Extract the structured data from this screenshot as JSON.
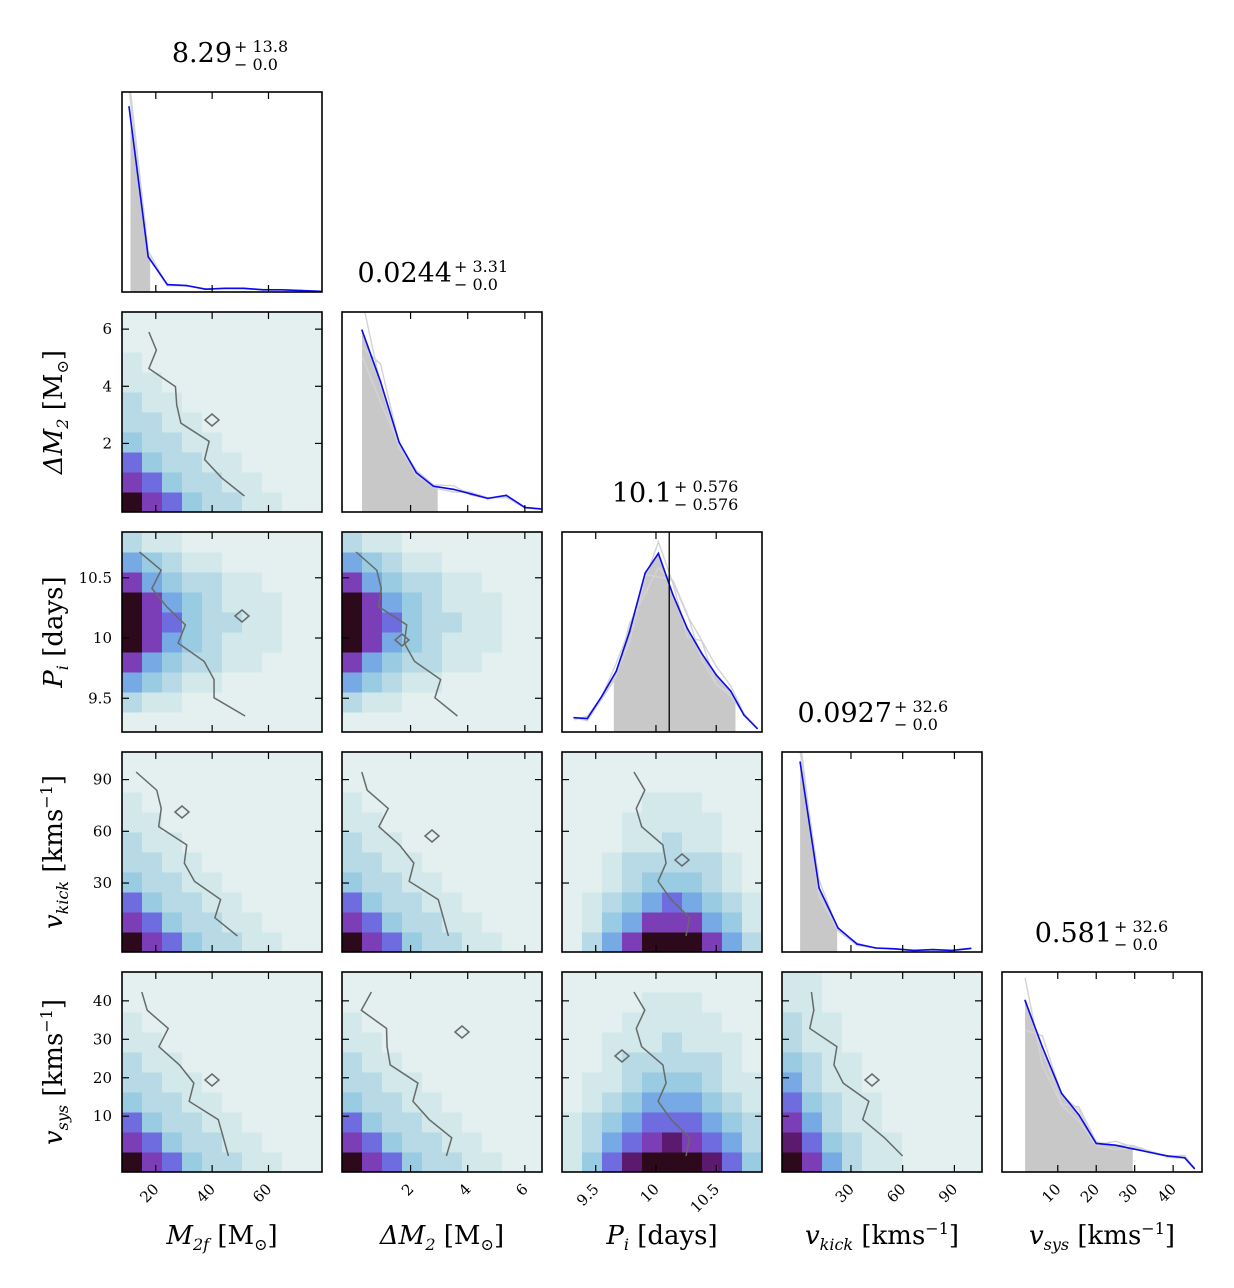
{
  "chart_data": {
    "type": "corner",
    "title": "",
    "parameters": [
      {
        "id": "m2f",
        "label": {
          "base": "M",
          "sub": "2f",
          "unit": "[M",
          "unit_sub": "⊙",
          "unit_end": "]"
        },
        "range": [
          8,
          79
        ],
        "ticks": [
          20,
          40,
          60
        ],
        "summary": {
          "value": "8.29",
          "plus": "+ 13.8",
          "minus": "− 0.0"
        },
        "hist": {
          "x": [
            10.5,
            17.3,
            24.1,
            30.9,
            37.7,
            44.5,
            51.3,
            58.1,
            64.9,
            71.7,
            78.5
          ],
          "y": [
            1.0,
            0.19,
            0.04,
            0.035,
            0.015,
            0.02,
            0.02,
            0.012,
            0.012,
            0.008,
            0.004
          ],
          "ymax": 1.08,
          "shade": [
            11,
            18
          ]
        }
      },
      {
        "id": "dm2",
        "label": {
          "base": "ΔM",
          "sub": "2",
          "unit": "[M",
          "unit_sub": "⊙",
          "unit_end": "]"
        },
        "range": [
          -0.4,
          6.6
        ],
        "ticks": [
          2,
          4,
          6
        ],
        "summary": {
          "value": "0.0244",
          "plus": "+ 3.31",
          "minus": "− 0.0"
        },
        "hist": {
          "x": [
            0.3,
            0.95,
            1.6,
            2.2,
            2.8,
            3.5,
            4.1,
            4.7,
            5.35,
            6.0,
            6.55
          ],
          "y": [
            0.6,
            0.43,
            0.23,
            0.13,
            0.085,
            0.075,
            0.06,
            0.045,
            0.055,
            0.015,
            0.01
          ],
          "ymax": 0.66,
          "shade": [
            0.3,
            2.95
          ]
        }
      },
      {
        "id": "pi",
        "label": {
          "base": "P",
          "sub": "i",
          "unit": "[days]",
          "unit_sub": "",
          "unit_end": ""
        },
        "range": [
          9.22,
          10.88
        ],
        "ticks": [
          9.5,
          10.0,
          10.5
        ],
        "summary": {
          "value": "10.1",
          "plus": "+ 0.576",
          "minus": "− 0.576"
        },
        "hist": {
          "x": [
            9.32,
            9.43,
            9.55,
            9.67,
            9.78,
            9.91,
            10.02,
            10.14,
            10.26,
            10.38,
            10.5,
            10.62,
            10.73,
            10.84
          ],
          "y": [
            0.08,
            0.075,
            0.2,
            0.34,
            0.56,
            0.89,
            1.0,
            0.77,
            0.58,
            0.44,
            0.32,
            0.23,
            0.095,
            0.02
          ],
          "ymax": 1.12,
          "shade": [
            9.65,
            10.66
          ],
          "median_line": 10.11
        }
      },
      {
        "id": "vkick",
        "label": {
          "base": "v",
          "sub": "kick",
          "unit": "[kms",
          "unit_sup": "−1",
          "unit_end": "]"
        },
        "range": [
          -10,
          106
        ],
        "ticks": [
          30,
          60,
          90
        ],
        "summary": {
          "value": "0.0927",
          "plus": "+ 32.6",
          "minus": "− 0.0"
        },
        "hist": {
          "x": [
            0.5,
            11.5,
            22.5,
            33.5,
            44.5,
            55.5,
            66.5,
            77.5,
            88.5,
            99.5
          ],
          "y": [
            0.95,
            0.32,
            0.12,
            0.04,
            0.02,
            0.016,
            0.008,
            0.012,
            0.008,
            0.018
          ],
          "ymax": 1.0,
          "shade": [
            0.5,
            22
          ]
        }
      },
      {
        "id": "vsys",
        "label": {
          "base": "v",
          "sub": "sys",
          "unit": "[kms",
          "unit_sup": "−1",
          "unit_end": "]"
        },
        "range": [
          -4.5,
          47.5
        ],
        "ticks": [
          10,
          20,
          30,
          40
        ],
        "summary": {
          "value": "0.581",
          "plus": "+ 32.6",
          "minus": "− 0.0"
        },
        "hist": {
          "x": [
            1.5,
            6.0,
            11.0,
            15.5,
            20.0,
            25.0,
            29.5,
            34.0,
            38.5,
            43.0,
            45.5
          ],
          "y": [
            0.48,
            0.35,
            0.22,
            0.16,
            0.08,
            0.075,
            0.065,
            0.055,
            0.045,
            0.04,
            0.01
          ],
          "ymax": 0.56,
          "shade": [
            1.5,
            29.5
          ]
        }
      }
    ],
    "density_colors": [
      "#e4f0f0",
      "#d2e8ea",
      "#b8dae6",
      "#99cbe2",
      "#77a9e4",
      "#6f6ce0",
      "#7c3eb6",
      "#5b1a6e",
      "#2c0a1c"
    ],
    "hist_color": "#0a0aee",
    "shade_color": "#c8c8c8",
    "contour_color": "#666a6a",
    "grey_trace_color": "#d3d3d5"
  }
}
